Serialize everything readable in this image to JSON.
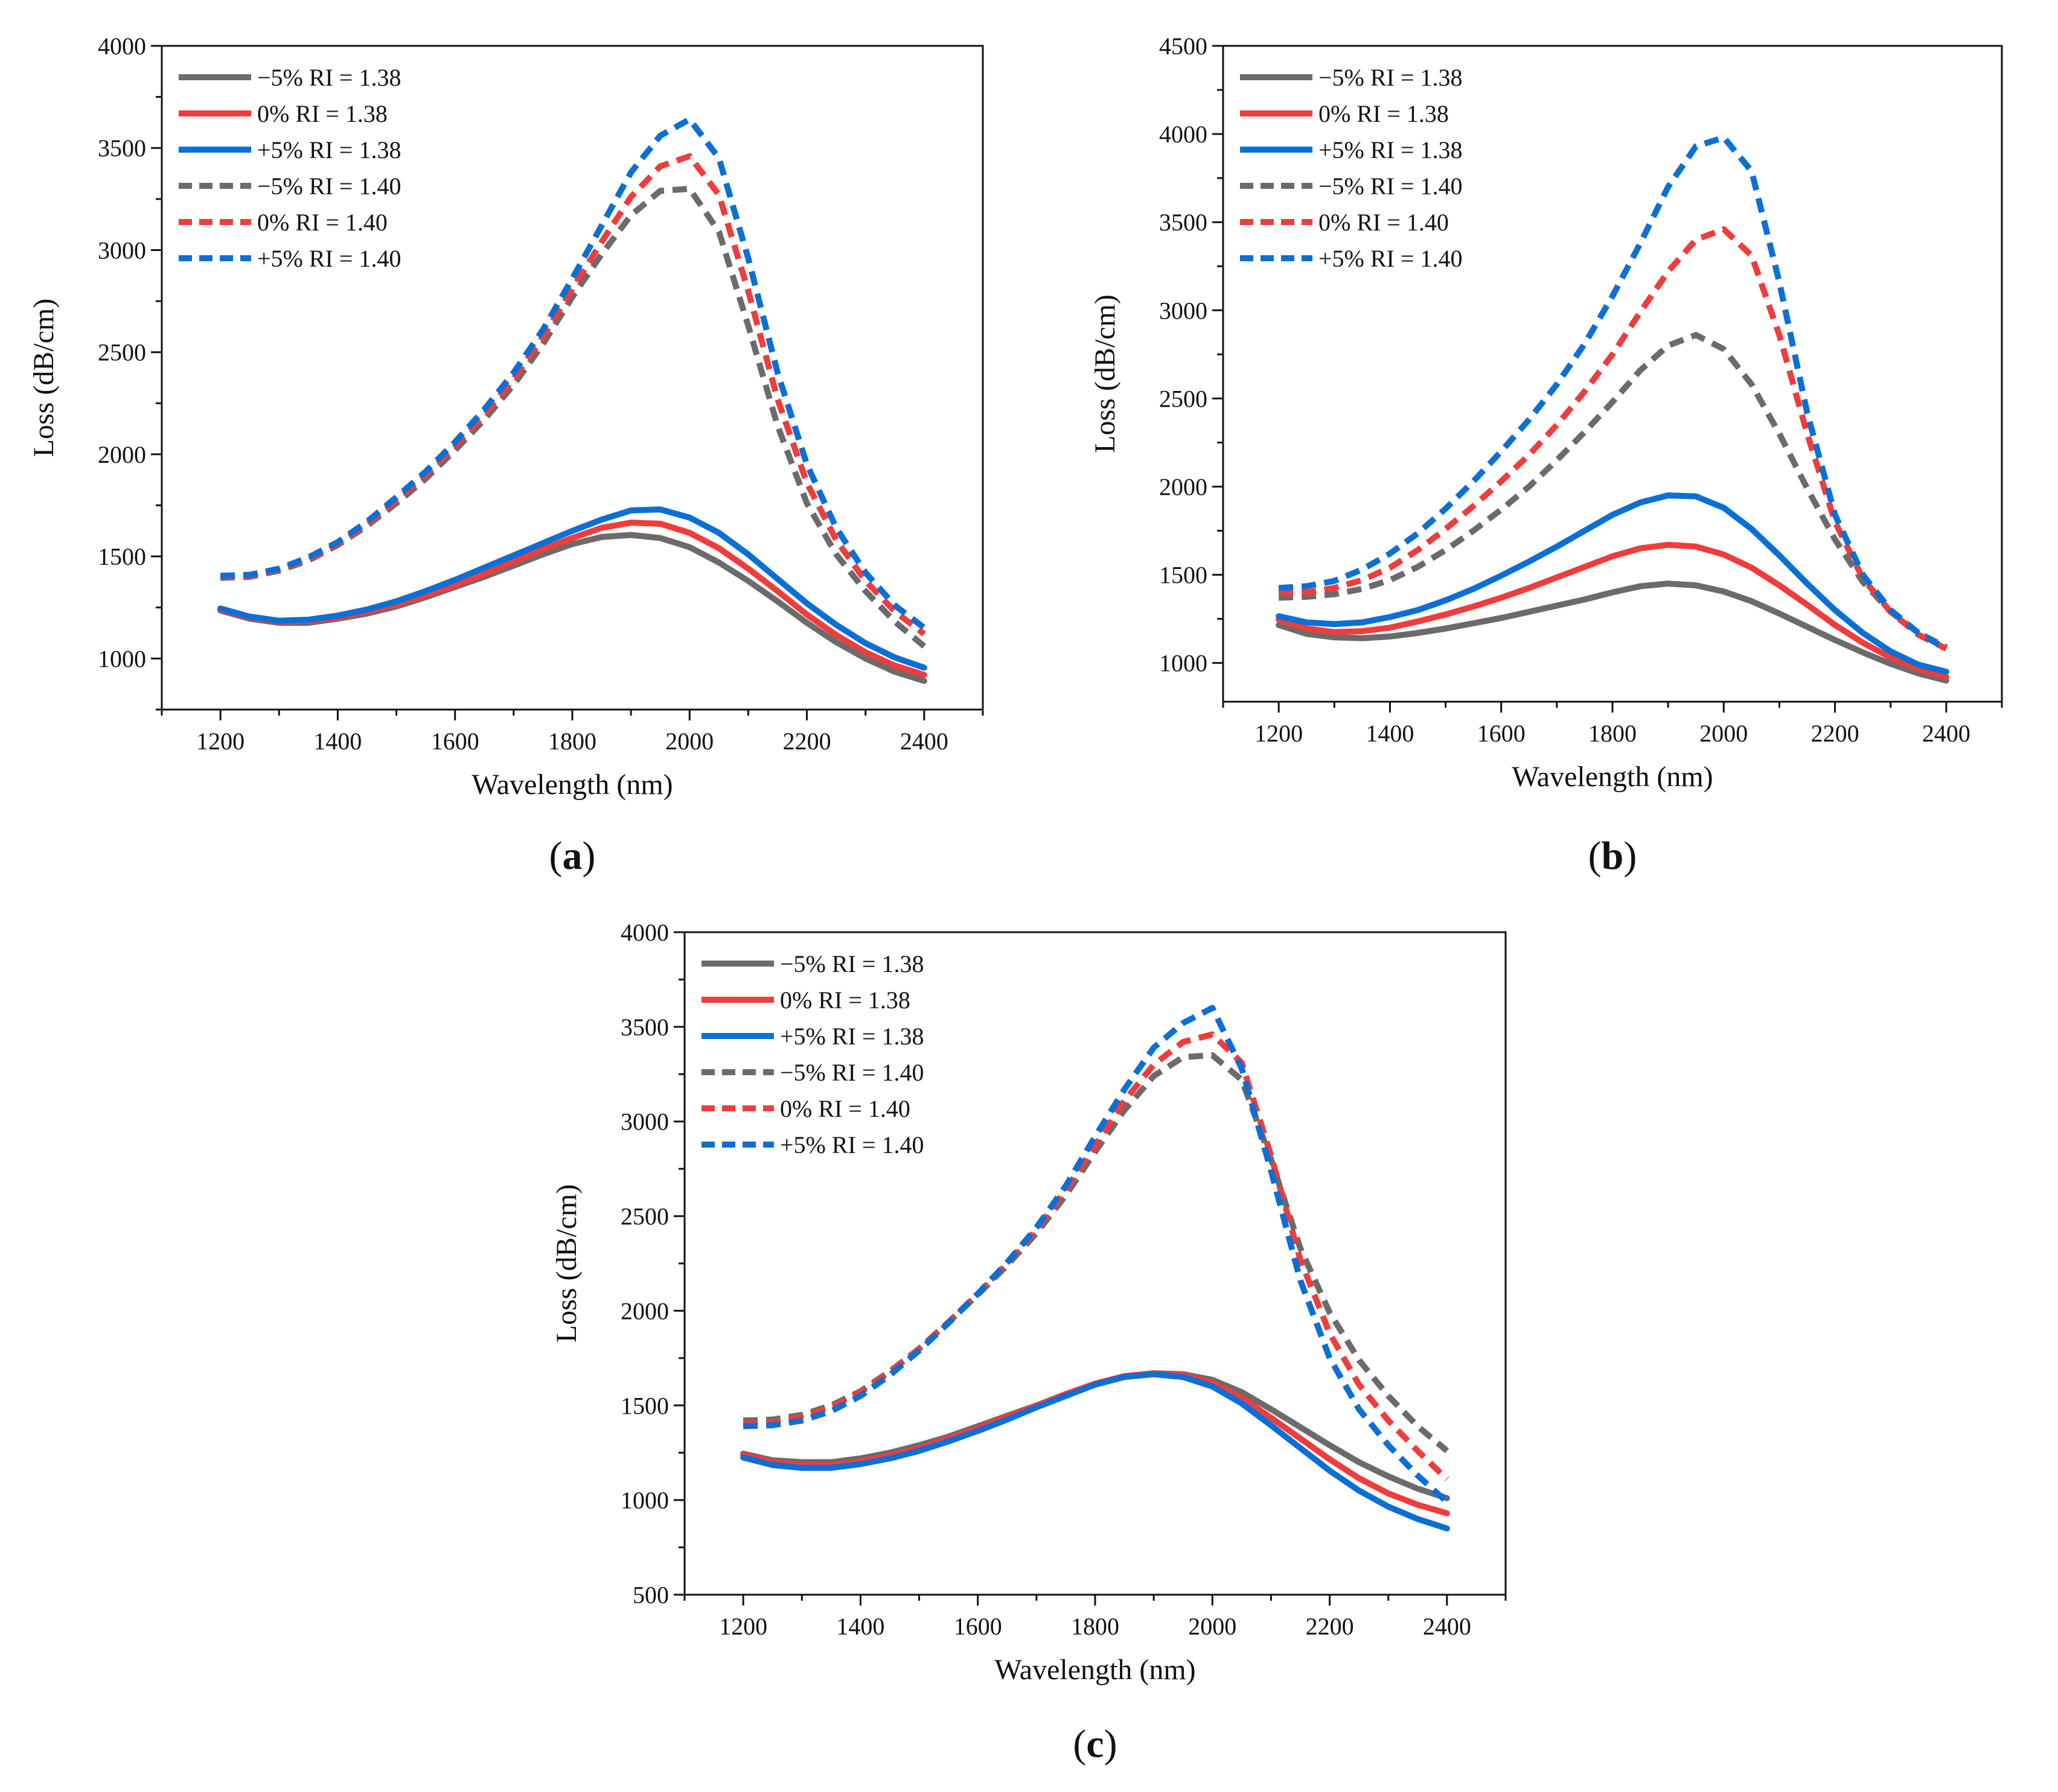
{
  "chart_data": [
    {
      "type": "line",
      "panel_label": "a",
      "xlabel": "Wavelength (nm)",
      "ylabel": "Loss (dB/cm)",
      "xlim": [
        1100,
        2500
      ],
      "ylim": [
        750,
        4000
      ],
      "xticks": [
        1200,
        1400,
        1600,
        1800,
        2000,
        2200,
        2400
      ],
      "yticks": [
        1000,
        1500,
        2000,
        2500,
        3000,
        3500,
        4000
      ],
      "legend_position": "top-left",
      "x": [
        1200,
        1250,
        1300,
        1350,
        1400,
        1450,
        1500,
        1550,
        1600,
        1650,
        1700,
        1750,
        1800,
        1850,
        1900,
        1950,
        2000,
        2050,
        2100,
        2150,
        2200,
        2250,
        2300,
        2350,
        2400
      ],
      "series": [
        {
          "name": "−5% RI = 1.38",
          "color": "#6b6b6b",
          "style": "solid",
          "values": [
            1235,
            1195,
            1175,
            1175,
            1195,
            1220,
            1255,
            1300,
            1350,
            1400,
            1455,
            1510,
            1560,
            1595,
            1605,
            1590,
            1545,
            1470,
            1380,
            1280,
            1175,
            1080,
            1000,
            935,
            890
          ]
        },
        {
          "name": "0% RI = 1.38",
          "color": "#f03c3c",
          "style": "solid",
          "values": [
            1240,
            1200,
            1180,
            1185,
            1200,
            1230,
            1265,
            1310,
            1360,
            1415,
            1475,
            1535,
            1590,
            1640,
            1665,
            1660,
            1615,
            1540,
            1440,
            1330,
            1215,
            1115,
            1030,
            965,
            920
          ]
        },
        {
          "name": "+5% RI = 1.38",
          "color": "#0b6fd6",
          "style": "solid",
          "values": [
            1245,
            1205,
            1185,
            1190,
            1210,
            1240,
            1280,
            1330,
            1385,
            1445,
            1505,
            1565,
            1625,
            1680,
            1725,
            1730,
            1690,
            1615,
            1510,
            1390,
            1270,
            1165,
            1075,
            1005,
            955
          ]
        },
        {
          "name": "−5% RI = 1.40",
          "color": "#6b6b6b",
          "style": "dashed",
          "values": [
            1395,
            1400,
            1430,
            1480,
            1555,
            1650,
            1760,
            1880,
            2020,
            2170,
            2340,
            2540,
            2770,
            2980,
            3170,
            3290,
            3300,
            3090,
            2630,
            2140,
            1760,
            1510,
            1330,
            1180,
            1060
          ]
        },
        {
          "name": "0% RI = 1.40",
          "color": "#f03c3c",
          "style": "dashed",
          "values": [
            1400,
            1405,
            1435,
            1485,
            1560,
            1660,
            1775,
            1900,
            2040,
            2195,
            2370,
            2575,
            2810,
            3040,
            3260,
            3410,
            3460,
            3270,
            2800,
            2270,
            1860,
            1580,
            1380,
            1230,
            1120
          ]
        },
        {
          "name": "+5% RI = 1.40",
          "color": "#0b6fd6",
          "style": "dashed",
          "values": [
            1405,
            1410,
            1440,
            1495,
            1570,
            1670,
            1790,
            1915,
            2060,
            2220,
            2400,
            2610,
            2860,
            3120,
            3380,
            3560,
            3640,
            3450,
            2960,
            2400,
            1950,
            1640,
            1420,
            1260,
            1150
          ]
        }
      ]
    },
    {
      "type": "line",
      "panel_label": "b",
      "xlabel": "Wavelength (nm)",
      "ylabel": "Loss (dB/cm)",
      "xlim": [
        1100,
        2500
      ],
      "ylim": [
        780,
        4500
      ],
      "xticks": [
        1200,
        1400,
        1600,
        1800,
        2000,
        2200,
        2400
      ],
      "yticks": [
        1000,
        1500,
        2000,
        2500,
        3000,
        3500,
        4000,
        4500
      ],
      "legend_position": "top-left",
      "x": [
        1200,
        1250,
        1300,
        1350,
        1400,
        1450,
        1500,
        1550,
        1600,
        1650,
        1700,
        1750,
        1800,
        1850,
        1900,
        1950,
        2000,
        2050,
        2100,
        2150,
        2200,
        2250,
        2300,
        2350,
        2400
      ],
      "series": [
        {
          "name": "−5% RI = 1.38",
          "color": "#6b6b6b",
          "style": "solid",
          "values": [
            1215,
            1165,
            1145,
            1140,
            1150,
            1170,
            1195,
            1225,
            1255,
            1290,
            1325,
            1360,
            1400,
            1435,
            1450,
            1440,
            1405,
            1350,
            1280,
            1205,
            1130,
            1060,
            995,
            940,
            900
          ]
        },
        {
          "name": "0% RI = 1.38",
          "color": "#f03c3c",
          "style": "solid",
          "values": [
            1245,
            1195,
            1175,
            1180,
            1200,
            1235,
            1275,
            1320,
            1370,
            1425,
            1485,
            1545,
            1605,
            1650,
            1670,
            1660,
            1615,
            1540,
            1440,
            1330,
            1215,
            1115,
            1030,
            965,
            920
          ]
        },
        {
          "name": "+5% RI = 1.38",
          "color": "#0b6fd6",
          "style": "solid",
          "values": [
            1265,
            1230,
            1220,
            1230,
            1260,
            1300,
            1355,
            1420,
            1495,
            1575,
            1660,
            1750,
            1840,
            1910,
            1950,
            1945,
            1880,
            1760,
            1610,
            1450,
            1300,
            1170,
            1065,
            990,
            950
          ]
        },
        {
          "name": "−5% RI = 1.40",
          "color": "#6b6b6b",
          "style": "dashed",
          "values": [
            1370,
            1375,
            1390,
            1420,
            1470,
            1545,
            1640,
            1750,
            1870,
            2000,
            2150,
            2310,
            2480,
            2660,
            2800,
            2860,
            2780,
            2580,
            2300,
            1990,
            1700,
            1460,
            1290,
            1170,
            1090
          ]
        },
        {
          "name": "0% RI = 1.40",
          "color": "#f03c3c",
          "style": "dashed",
          "values": [
            1395,
            1400,
            1425,
            1470,
            1540,
            1640,
            1760,
            1890,
            2030,
            2180,
            2350,
            2540,
            2750,
            2990,
            3220,
            3400,
            3460,
            3310,
            2860,
            2300,
            1800,
            1480,
            1290,
            1160,
            1080
          ]
        },
        {
          "name": "+5% RI = 1.40",
          "color": "#0b6fd6",
          "style": "dashed",
          "values": [
            1425,
            1435,
            1465,
            1530,
            1620,
            1735,
            1875,
            2030,
            2200,
            2380,
            2580,
            2810,
            3080,
            3380,
            3700,
            3930,
            3980,
            3790,
            3160,
            2420,
            1840,
            1500,
            1300,
            1170,
            1080
          ]
        }
      ]
    },
    {
      "type": "line",
      "panel_label": "c",
      "xlabel": "Wavelength (nm)",
      "ylabel": "Loss (dB/cm)",
      "xlim": [
        1100,
        2500
      ],
      "ylim": [
        500,
        4000
      ],
      "xticks": [
        1200,
        1400,
        1600,
        1800,
        2000,
        2200,
        2400
      ],
      "yticks": [
        500,
        1000,
        1500,
        2000,
        2500,
        3000,
        3500,
        4000
      ],
      "legend_position": "top-left",
      "x": [
        1200,
        1250,
        1300,
        1350,
        1400,
        1450,
        1500,
        1550,
        1600,
        1650,
        1700,
        1750,
        1800,
        1850,
        1900,
        1950,
        2000,
        2050,
        2100,
        2150,
        2200,
        2250,
        2300,
        2350,
        2400
      ],
      "series": [
        {
          "name": "−5% RI = 1.38",
          "color": "#6b6b6b",
          "style": "solid",
          "values": [
            1245,
            1210,
            1200,
            1200,
            1220,
            1250,
            1290,
            1335,
            1390,
            1445,
            1500,
            1555,
            1610,
            1650,
            1670,
            1665,
            1635,
            1570,
            1480,
            1385,
            1290,
            1200,
            1125,
            1060,
            1010
          ]
        },
        {
          "name": "0% RI = 1.38",
          "color": "#f03c3c",
          "style": "solid",
          "values": [
            1240,
            1200,
            1185,
            1185,
            1205,
            1235,
            1275,
            1325,
            1380,
            1440,
            1500,
            1560,
            1615,
            1655,
            1670,
            1660,
            1620,
            1540,
            1435,
            1325,
            1215,
            1115,
            1035,
            975,
            930
          ]
        },
        {
          "name": "+5% RI = 1.38",
          "color": "#0b6fd6",
          "style": "solid",
          "values": [
            1225,
            1185,
            1170,
            1170,
            1190,
            1220,
            1260,
            1310,
            1365,
            1425,
            1490,
            1550,
            1610,
            1650,
            1665,
            1650,
            1600,
            1510,
            1395,
            1275,
            1155,
            1050,
            965,
            900,
            850
          ]
        },
        {
          "name": "−5% RI = 1.40",
          "color": "#6b6b6b",
          "style": "dashed",
          "values": [
            1420,
            1425,
            1450,
            1500,
            1575,
            1680,
            1800,
            1940,
            2085,
            2240,
            2410,
            2610,
            2840,
            3060,
            3240,
            3340,
            3350,
            3220,
            2800,
            2330,
            1990,
            1740,
            1550,
            1390,
            1260
          ]
        },
        {
          "name": "0% RI = 1.40",
          "color": "#f03c3c",
          "style": "dashed",
          "values": [
            1405,
            1410,
            1440,
            1490,
            1570,
            1675,
            1800,
            1940,
            2090,
            2250,
            2430,
            2640,
            2870,
            3110,
            3300,
            3420,
            3460,
            3310,
            2820,
            2270,
            1880,
            1610,
            1420,
            1260,
            1110
          ]
        },
        {
          "name": "+5% RI = 1.40",
          "color": "#0b6fd6",
          "style": "dashed",
          "values": [
            1390,
            1395,
            1420,
            1470,
            1550,
            1660,
            1790,
            1935,
            2090,
            2255,
            2440,
            2660,
            2920,
            3170,
            3390,
            3520,
            3600,
            3280,
            2740,
            2160,
            1750,
            1480,
            1290,
            1130,
            990
          ]
        }
      ]
    }
  ]
}
